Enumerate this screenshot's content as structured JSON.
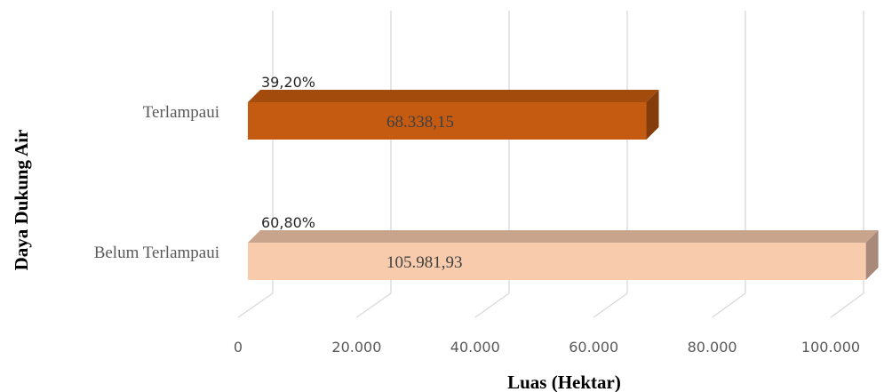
{
  "chart_data": {
    "type": "bar",
    "orientation": "horizontal",
    "style": "3d",
    "title": "",
    "xlabel": "Luas (Hektar)",
    "ylabel": "Daya Dukung Air",
    "xlim": [
      0,
      100000
    ],
    "x_ticks": [
      0,
      20000,
      40000,
      60000,
      80000,
      100000
    ],
    "x_tick_labels": [
      "0",
      "20.000",
      "40.000",
      "60.000",
      "80.000",
      "100.000"
    ],
    "grid": true,
    "legend": "none",
    "categories": [
      "Terlampaui",
      "Belum Terlampaui"
    ],
    "values": [
      68338.15,
      105981.93
    ],
    "value_labels": [
      "68.338,15",
      "105.981,93"
    ],
    "percent_labels": [
      "39,20%",
      "60,80%"
    ],
    "colors": {
      "Terlampaui": "#c55a11",
      "Belum Terlampaui": "#f8cbad"
    }
  }
}
